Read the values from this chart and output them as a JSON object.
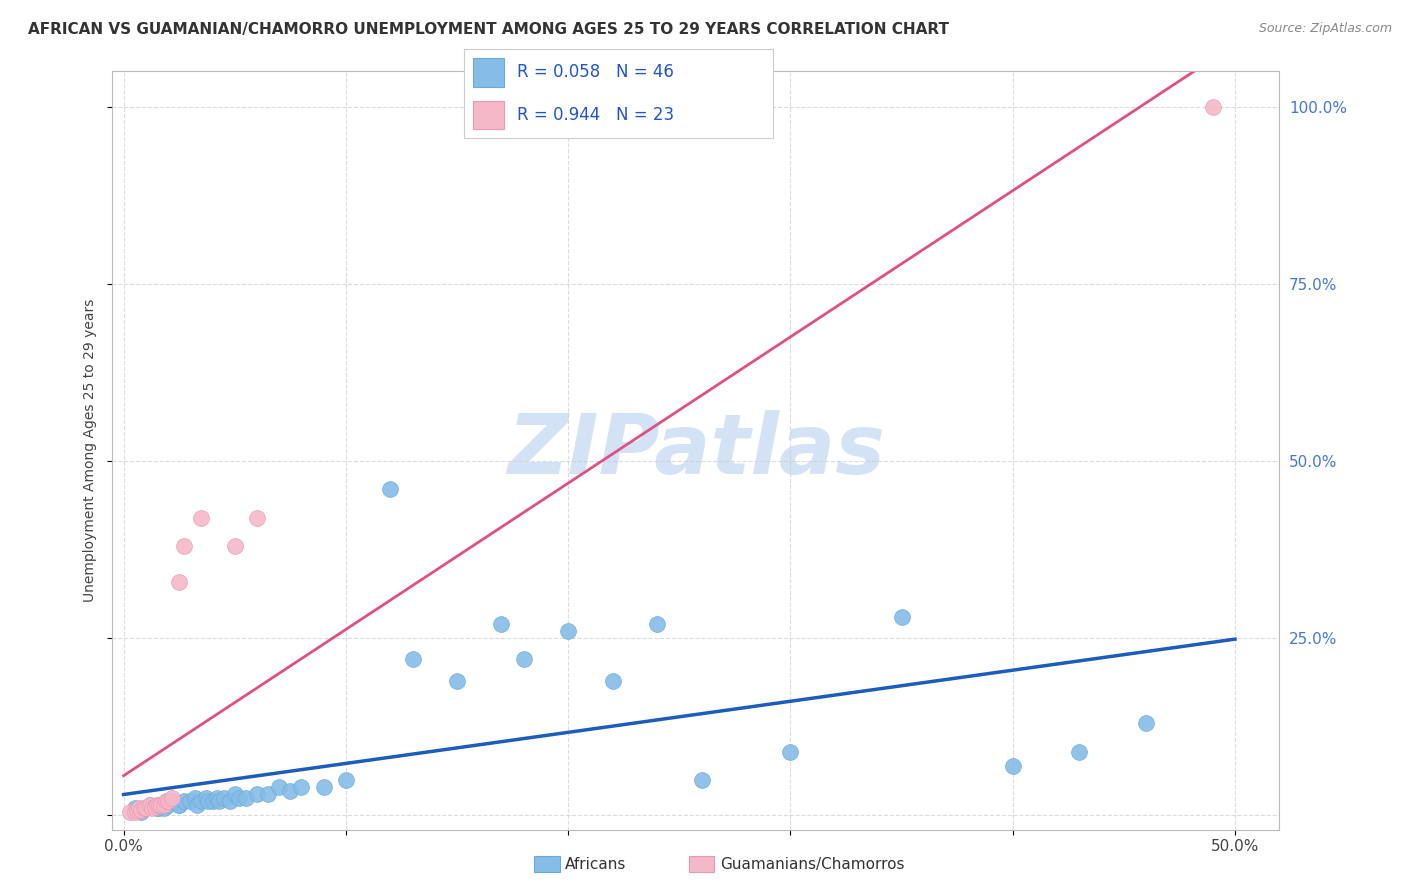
{
  "title": "AFRICAN VS GUAMANIAN/CHAMORRO UNEMPLOYMENT AMONG AGES 25 TO 29 YEARS CORRELATION CHART",
  "source": "Source: ZipAtlas.com",
  "ylabel": "Unemployment Among Ages 25 to 29 years",
  "xlim": [
    -0.005,
    0.52
  ],
  "ylim": [
    -0.02,
    1.05
  ],
  "xticks": [
    0.0,
    0.1,
    0.2,
    0.3,
    0.4,
    0.5
  ],
  "yticks": [
    0.0,
    0.25,
    0.5,
    0.75,
    1.0
  ],
  "xticklabels": [
    "0.0%",
    "",
    "",
    "",
    "",
    "50.0%"
  ],
  "yticklabels_right": [
    "",
    "25.0%",
    "50.0%",
    "75.0%",
    "100.0%"
  ],
  "background_color": "#ffffff",
  "grid_color": "#cccccc",
  "africans_color": "#85bce8",
  "africans_edge_color": "#6aaad6",
  "guamanians_color": "#f5b8c8",
  "guamanians_edge_color": "#e898b0",
  "africans_line_color": "#1a5dbf",
  "guamanians_line_color": "#e05080",
  "watermark_color": "#d0dff5",
  "africans_x": [
    0.005,
    0.008,
    0.012,
    0.015,
    0.016,
    0.018,
    0.02,
    0.022,
    0.025,
    0.025,
    0.027,
    0.03,
    0.032,
    0.033,
    0.035,
    0.037,
    0.038,
    0.04,
    0.042,
    0.043,
    0.045,
    0.048,
    0.05,
    0.052,
    0.055,
    0.06,
    0.065,
    0.07,
    0.075,
    0.08,
    0.09,
    0.1,
    0.12,
    0.13,
    0.15,
    0.17,
    0.18,
    0.2,
    0.22,
    0.24,
    0.26,
    0.3,
    0.35,
    0.4,
    0.43,
    0.46
  ],
  "africans_y": [
    0.01,
    0.005,
    0.015,
    0.01,
    0.01,
    0.01,
    0.015,
    0.02,
    0.015,
    0.015,
    0.02,
    0.02,
    0.025,
    0.015,
    0.02,
    0.025,
    0.02,
    0.02,
    0.025,
    0.02,
    0.025,
    0.02,
    0.03,
    0.025,
    0.025,
    0.03,
    0.03,
    0.04,
    0.035,
    0.04,
    0.04,
    0.05,
    0.46,
    0.22,
    0.19,
    0.27,
    0.22,
    0.26,
    0.19,
    0.27,
    0.05,
    0.09,
    0.28,
    0.07,
    0.09,
    0.13
  ],
  "guamanians_x": [
    0.003,
    0.005,
    0.006,
    0.007,
    0.008,
    0.009,
    0.01,
    0.012,
    0.013,
    0.014,
    0.015,
    0.016,
    0.017,
    0.018,
    0.019,
    0.02,
    0.022,
    0.025,
    0.027,
    0.035,
    0.05,
    0.06,
    0.49
  ],
  "guamanians_y": [
    0.005,
    0.005,
    0.008,
    0.01,
    0.008,
    0.01,
    0.01,
    0.015,
    0.01,
    0.012,
    0.015,
    0.015,
    0.015,
    0.015,
    0.02,
    0.02,
    0.025,
    0.33,
    0.38,
    0.42,
    0.38,
    0.42,
    1.0
  ],
  "title_fontsize": 11,
  "axis_label_fontsize": 10,
  "tick_fontsize": 11,
  "legend_fontsize": 12
}
